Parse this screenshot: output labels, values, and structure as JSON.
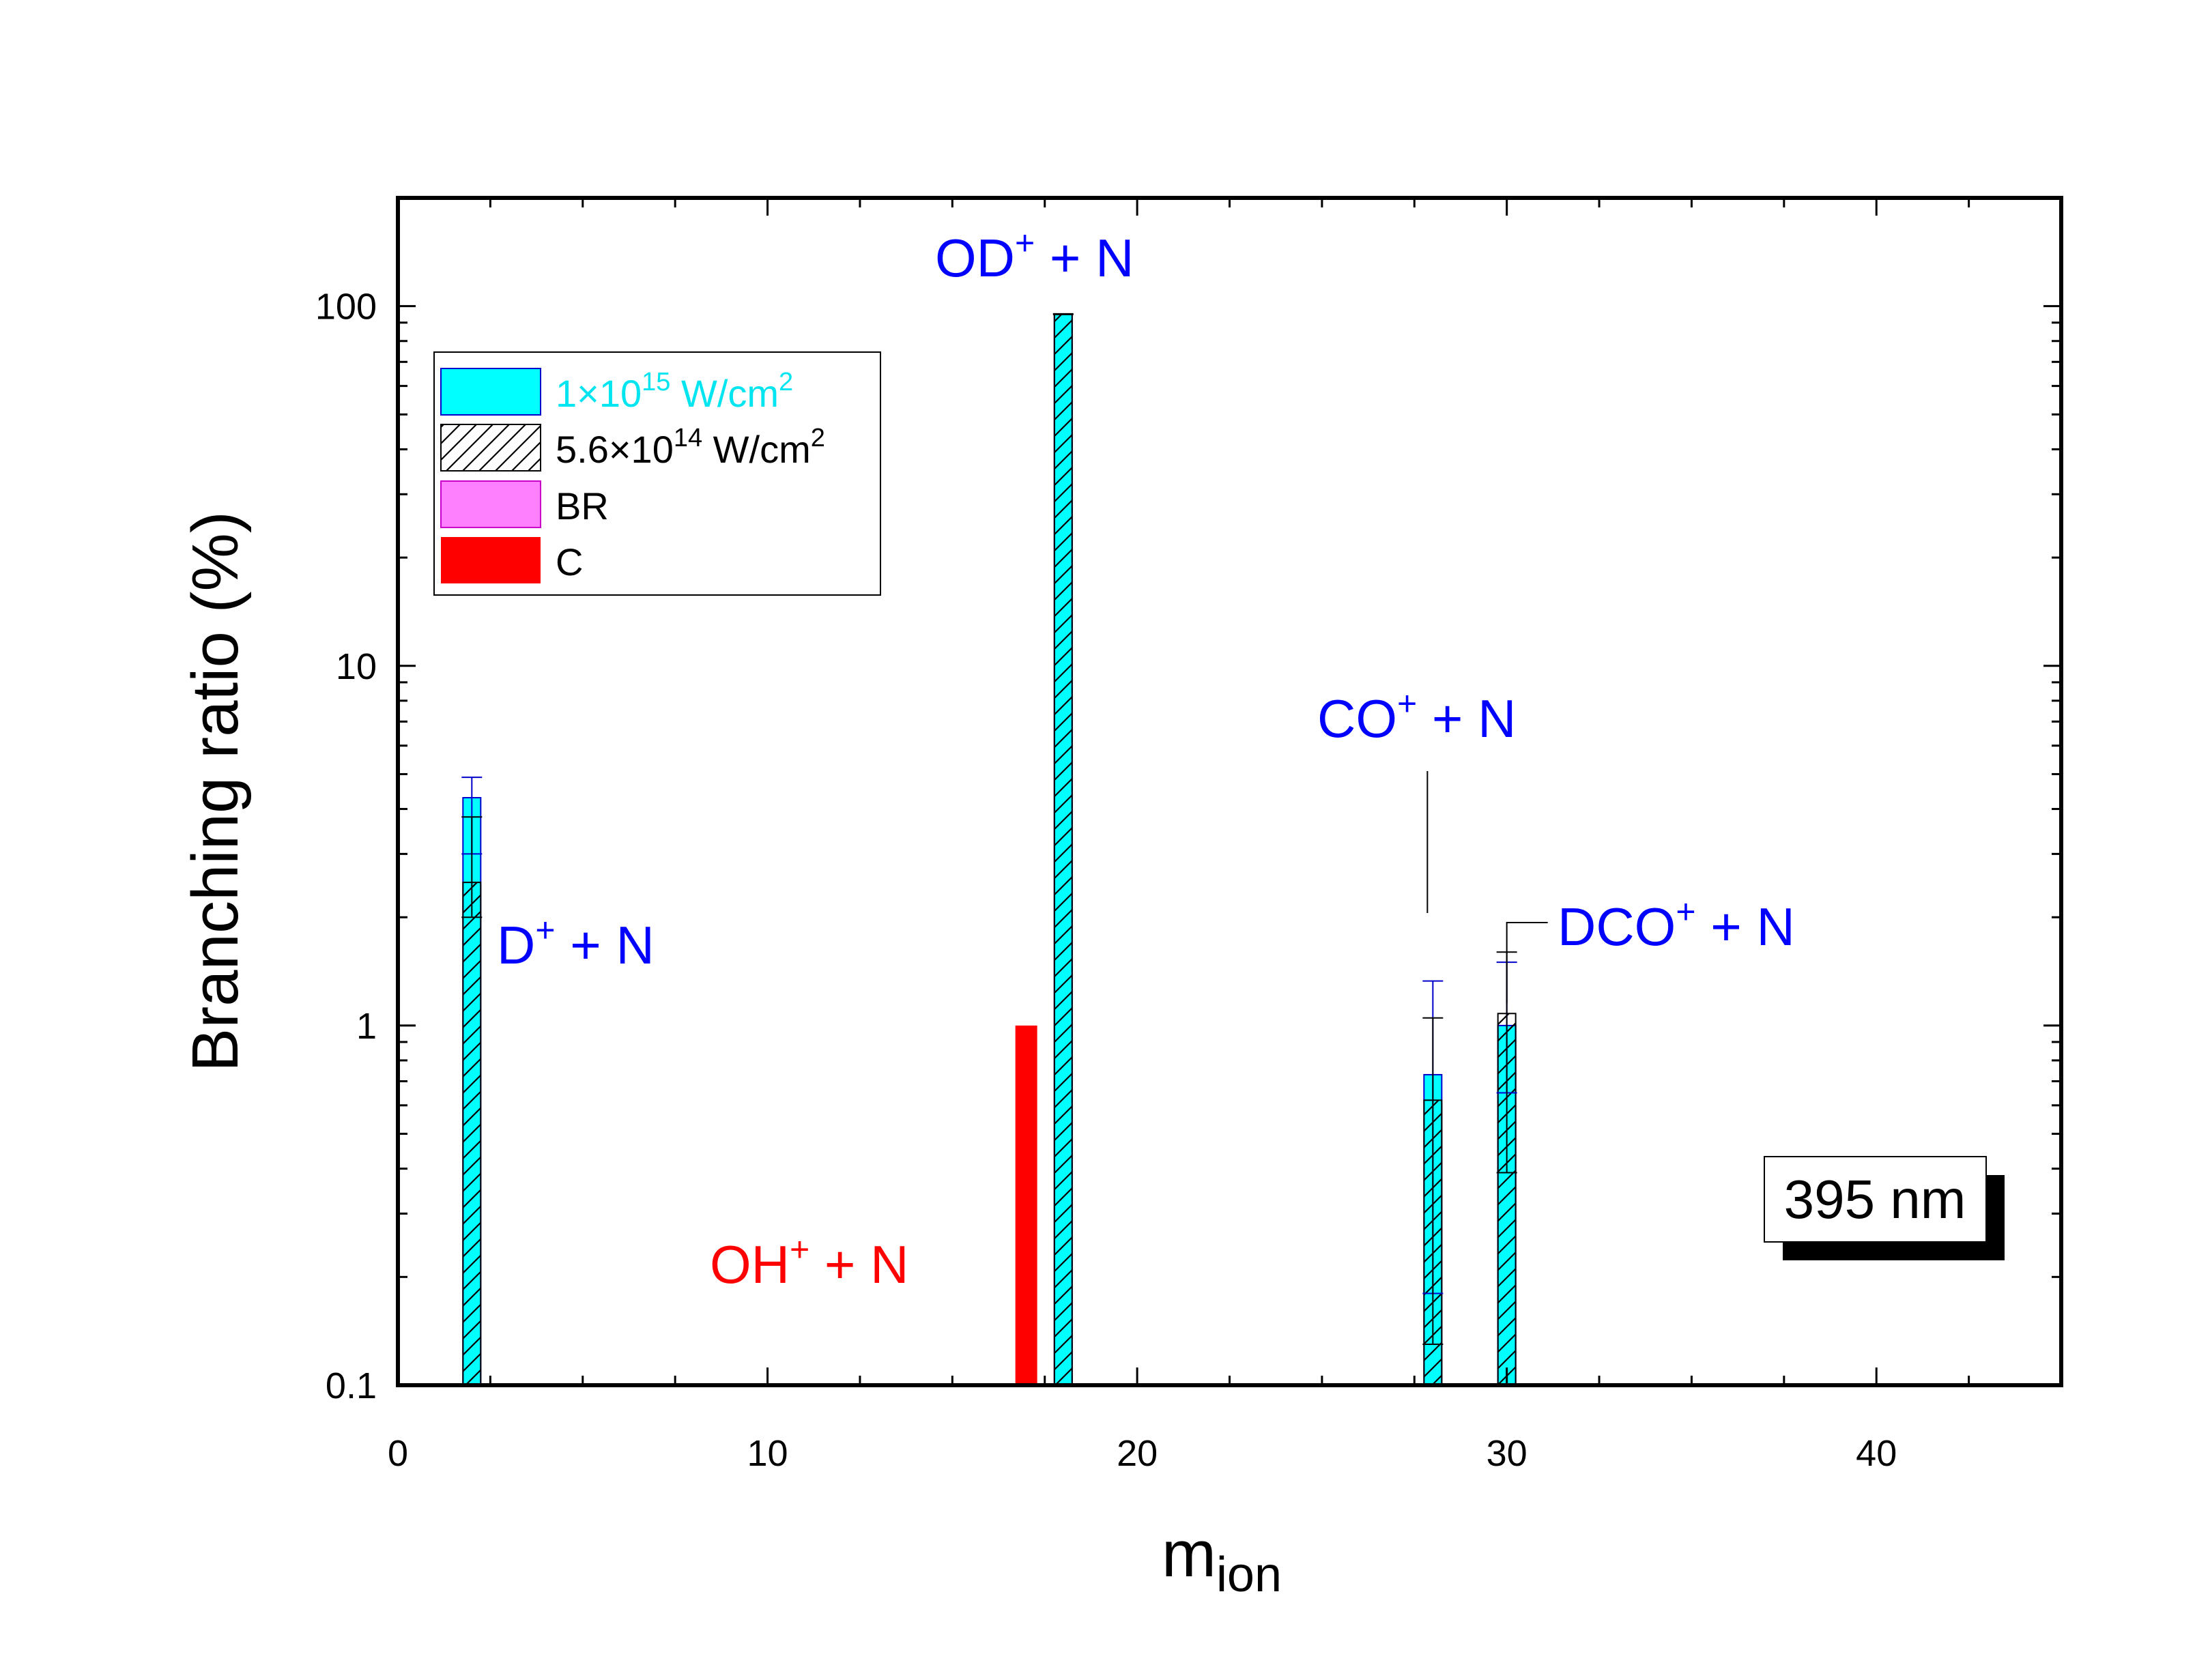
{
  "chart_data": {
    "type": "bar",
    "xlabel_main": "m",
    "xlabel_sub": "ion",
    "ylabel": "Branching ratio  (%)",
    "xlim": [
      0,
      45
    ],
    "ylim": [
      0.1,
      200
    ],
    "yscale": "log",
    "xticks": [
      0,
      10,
      20,
      30,
      40
    ],
    "yticks": [
      0.1,
      1,
      10,
      100
    ],
    "ytick_labels": [
      "0.1",
      "1",
      "10",
      "100"
    ],
    "xtick_labels": [
      "0",
      "10",
      "20",
      "30",
      "40"
    ],
    "grid": false,
    "legend_position": "top-left",
    "legend": [
      {
        "key": "high",
        "label": "1×10",
        "sup": "15",
        "suffix": " W/cm",
        "sup2": "2",
        "color": "#00FFFF",
        "text_color": "#00E5F0"
      },
      {
        "key": "low",
        "label": "5.6×10",
        "sup": "14",
        "suffix": " W/cm",
        "sup2": "2",
        "color": "#ffffff",
        "text_color": "#000000"
      },
      {
        "key": "br",
        "label": "BR",
        "color": "#FF80FF",
        "text_color": "#000000"
      },
      {
        "key": "c",
        "label": "C",
        "color": "#FF0000",
        "text_color": "#000000"
      }
    ],
    "series": [
      {
        "name": "1×10^15 W/cm^2",
        "x": [
          2,
          18,
          28,
          30
        ],
        "values": [
          4.3,
          95,
          0.73,
          1.0
        ],
        "err_up": [
          4.9,
          95,
          1.33,
          1.5
        ],
        "err_low": [
          3.0,
          95,
          0.18,
          0.65
        ]
      },
      {
        "name": "5.6×10^14 W/cm^2",
        "x": [
          2,
          18,
          28,
          30
        ],
        "values": [
          2.5,
          95,
          0.62,
          1.08
        ],
        "err_up": [
          3.8,
          95,
          1.05,
          1.6
        ],
        "err_low": [
          2.0,
          95,
          0.13,
          0.39
        ]
      },
      {
        "name": "C",
        "x": [
          17
        ],
        "values": [
          1.0
        ]
      }
    ],
    "annotations": [
      {
        "id": "d",
        "base": "D",
        "sup": "+",
        "rest": " + N",
        "color": "#0000FF"
      },
      {
        "id": "od",
        "base": "OD",
        "sup": "+",
        "rest": " + N",
        "color": "#0000FF"
      },
      {
        "id": "oh",
        "base": "OH",
        "sup": "+",
        "rest": " + N",
        "color": "#FF0000"
      },
      {
        "id": "co",
        "base": "CO",
        "sup": "+",
        "rest": " + N",
        "color": "#0000FF"
      },
      {
        "id": "dco",
        "base": "DCO",
        "sup": "+",
        "rest": " + N",
        "color": "#0000FF"
      }
    ],
    "badge": "395 nm"
  }
}
